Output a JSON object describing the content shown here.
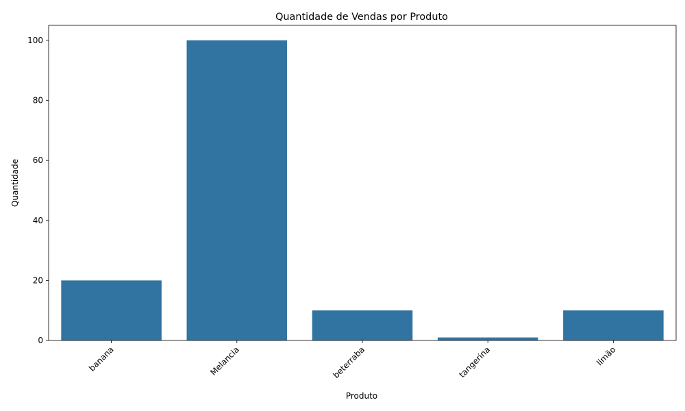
{
  "chart_data": {
    "type": "bar",
    "title": "Quantidade de Vendas por Produto",
    "xlabel": "Produto",
    "ylabel": "Quantidade",
    "categories": [
      "banana",
      "Melancia",
      "beterraba",
      "tangerina",
      "limão"
    ],
    "values": [
      20,
      100,
      10,
      1,
      10
    ],
    "ylim": [
      0,
      105
    ],
    "yticks": [
      0,
      20,
      40,
      60,
      80,
      100
    ],
    "grid": false,
    "bar_color": "#3274a1"
  }
}
